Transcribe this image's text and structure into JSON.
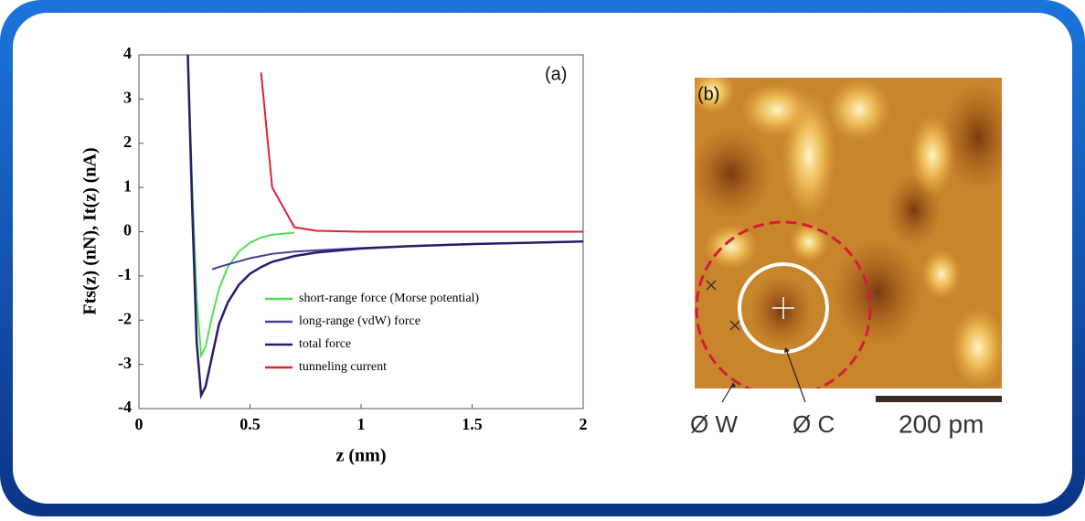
{
  "chart_data": {
    "type": "line",
    "panel_label": "(a)",
    "xlabel": "z (nm)",
    "ylabel": "Fts(z) (nN), It(z) (nA)",
    "x": [
      0.22,
      0.24,
      0.26,
      0.28,
      0.3,
      0.33,
      0.36,
      0.4,
      0.45,
      0.5,
      0.55,
      0.6,
      0.7,
      0.8,
      1.0,
      1.2,
      1.5,
      1.75,
      2.0
    ],
    "series": [
      {
        "name": "short-range force (Morse potential)",
        "color": "#4fe04f",
        "values": [
          4,
          1,
          -1.5,
          -2.8,
          -2.6,
          -1.9,
          -1.3,
          -0.8,
          -0.45,
          -0.25,
          -0.13,
          -0.07,
          -0.02,
          null,
          null,
          null,
          null,
          null,
          null
        ]
      },
      {
        "name": "long-range (vdW) force",
        "color": "#4b3c9c",
        "values": [
          null,
          null,
          null,
          null,
          null,
          -0.85,
          -0.8,
          -0.74,
          -0.67,
          -0.6,
          -0.55,
          -0.5,
          -0.45,
          -0.42,
          -0.37,
          -0.33,
          -0.28,
          -0.25,
          -0.22
        ]
      },
      {
        "name": "total force",
        "color": "#2a1a6a",
        "values": [
          4,
          0.5,
          -2.5,
          -3.7,
          -3.5,
          -2.8,
          -2.1,
          -1.6,
          -1.2,
          -0.95,
          -0.8,
          -0.68,
          -0.55,
          -0.47,
          -0.38,
          -0.33,
          -0.28,
          -0.25,
          -0.22
        ]
      },
      {
        "name": "tunneling current",
        "color": "#dd2233",
        "values": [
          null,
          null,
          null,
          null,
          null,
          null,
          null,
          null,
          null,
          null,
          3.6,
          1.0,
          0.1,
          0.02,
          0,
          0,
          0,
          0,
          0
        ]
      }
    ],
    "xlim": [
      0,
      2
    ],
    "ylim": [
      -4,
      4
    ],
    "xticks": [
      0,
      0.5,
      1,
      1.5,
      2
    ],
    "yticks": [
      -4,
      -3,
      -2,
      -1,
      0,
      1,
      2,
      3,
      4
    ],
    "legend": "lower right"
  },
  "image_panel": {
    "label": "(b)",
    "labels": [
      "Ø W",
      "Ø C"
    ],
    "scale_bar": "200 pm"
  }
}
